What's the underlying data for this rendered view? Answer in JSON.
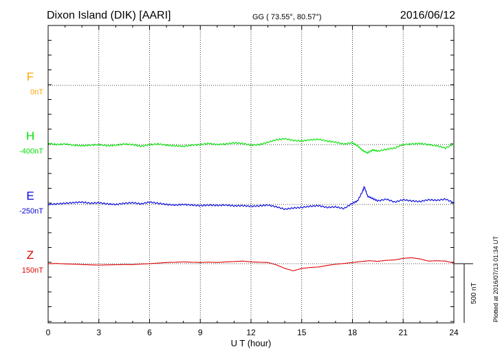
{
  "header": {
    "station": "Dixon Island (DIK)  [AARI]",
    "coords": "GG ( 73.55°,  80.57°)",
    "date": "2016/06/12"
  },
  "side_note": "Plotted at 2016/07/13 01:34 UT",
  "chart_data": {
    "type": "line",
    "xlabel": "U T (hour)",
    "xlim": [
      0,
      24
    ],
    "xticks": [
      0,
      3,
      6,
      9,
      12,
      15,
      18,
      21,
      24
    ],
    "xtick_labels": [
      "0",
      "3",
      "6",
      "9",
      "12",
      "15",
      "18",
      "21",
      "24"
    ],
    "grid": true,
    "scale_bar": {
      "label": "500 nT",
      "value_nT": 500
    },
    "series": [
      {
        "name": "F",
        "baseline_label": "0nT",
        "color": "#ffa500",
        "x": [],
        "values": []
      },
      {
        "name": "H",
        "baseline_label": "-400nT",
        "color": "#00e000",
        "x": [
          0,
          0.5,
          1,
          1.5,
          2,
          2.5,
          3,
          3.5,
          4,
          4.5,
          5,
          5.5,
          6,
          6.5,
          7,
          7.5,
          8,
          8.5,
          9,
          9.5,
          10,
          10.5,
          11,
          11.5,
          12,
          12.5,
          13,
          13.5,
          14,
          14.5,
          15,
          15.5,
          16,
          16.5,
          17,
          17.5,
          18,
          18.3,
          18.6,
          18.9,
          19.2,
          19.5,
          20,
          20.5,
          21,
          21.5,
          22,
          22.5,
          23,
          23.5,
          24
        ],
        "values": [
          -390,
          -400,
          -395,
          -405,
          -410,
          -405,
          -400,
          -410,
          -405,
          -395,
          -400,
          -415,
          -400,
          -395,
          -405,
          -410,
          -415,
          -405,
          -400,
          -390,
          -400,
          -395,
          -385,
          -390,
          -405,
          -400,
          -380,
          -360,
          -350,
          -365,
          -370,
          -360,
          -355,
          -370,
          -380,
          -395,
          -385,
          -410,
          -450,
          -470,
          -445,
          -455,
          -440,
          -430,
          -400,
          -395,
          -390,
          -400,
          -410,
          -430,
          -395
        ]
      },
      {
        "name": "E",
        "baseline_label": "-250nT",
        "color": "#0000dd",
        "x": [
          0,
          0.5,
          1,
          1.5,
          2,
          2.5,
          3,
          3.5,
          4,
          4.5,
          5,
          5.5,
          6,
          6.5,
          7,
          7.5,
          8,
          8.5,
          9,
          9.5,
          10,
          10.5,
          11,
          11.5,
          12,
          12.5,
          13,
          13.5,
          14,
          14.5,
          15,
          15.5,
          16,
          16.5,
          17,
          17.5,
          18,
          18.3,
          18.6,
          18.7,
          18.9,
          19.2,
          19.5,
          20,
          20.5,
          21,
          21.5,
          22,
          22.5,
          23,
          23.5,
          24
        ],
        "values": [
          -250,
          -245,
          -240,
          -235,
          -230,
          -240,
          -235,
          -245,
          -250,
          -240,
          -235,
          -245,
          -230,
          -240,
          -250,
          -255,
          -250,
          -255,
          -260,
          -255,
          -258,
          -255,
          -262,
          -260,
          -265,
          -262,
          -255,
          -270,
          -290,
          -280,
          -275,
          -265,
          -260,
          -275,
          -270,
          -285,
          -240,
          -220,
          -140,
          -100,
          -180,
          -200,
          -220,
          -205,
          -230,
          -210,
          -220,
          -225,
          -210,
          -215,
          -205,
          -235
        ]
      },
      {
        "name": "Z",
        "baseline_label": "150nT",
        "color": "#dd0000",
        "x": [
          0,
          0.5,
          1,
          1.5,
          2,
          2.5,
          3,
          3.5,
          4,
          4.5,
          5,
          5.5,
          6,
          6.5,
          7,
          7.5,
          8,
          8.5,
          9,
          9.5,
          10,
          10.5,
          11,
          11.5,
          12,
          12.5,
          13,
          13.5,
          14,
          14.5,
          15,
          15.5,
          16,
          16.5,
          17,
          17.5,
          18,
          18.5,
          19,
          19.5,
          20,
          20.5,
          21,
          21.5,
          22,
          22.5,
          23,
          23.5,
          24
        ],
        "values": [
          150,
          152,
          148,
          146,
          143,
          140,
          138,
          140,
          141,
          143,
          142,
          147,
          150,
          155,
          160,
          162,
          165,
          162,
          160,
          163,
          160,
          165,
          168,
          172,
          165,
          162,
          160,
          140,
          110,
          90,
          110,
          118,
          122,
          135,
          145,
          152,
          160,
          168,
          175,
          170,
          178,
          182,
          195,
          200,
          190,
          172,
          175,
          172,
          155
        ]
      }
    ]
  }
}
